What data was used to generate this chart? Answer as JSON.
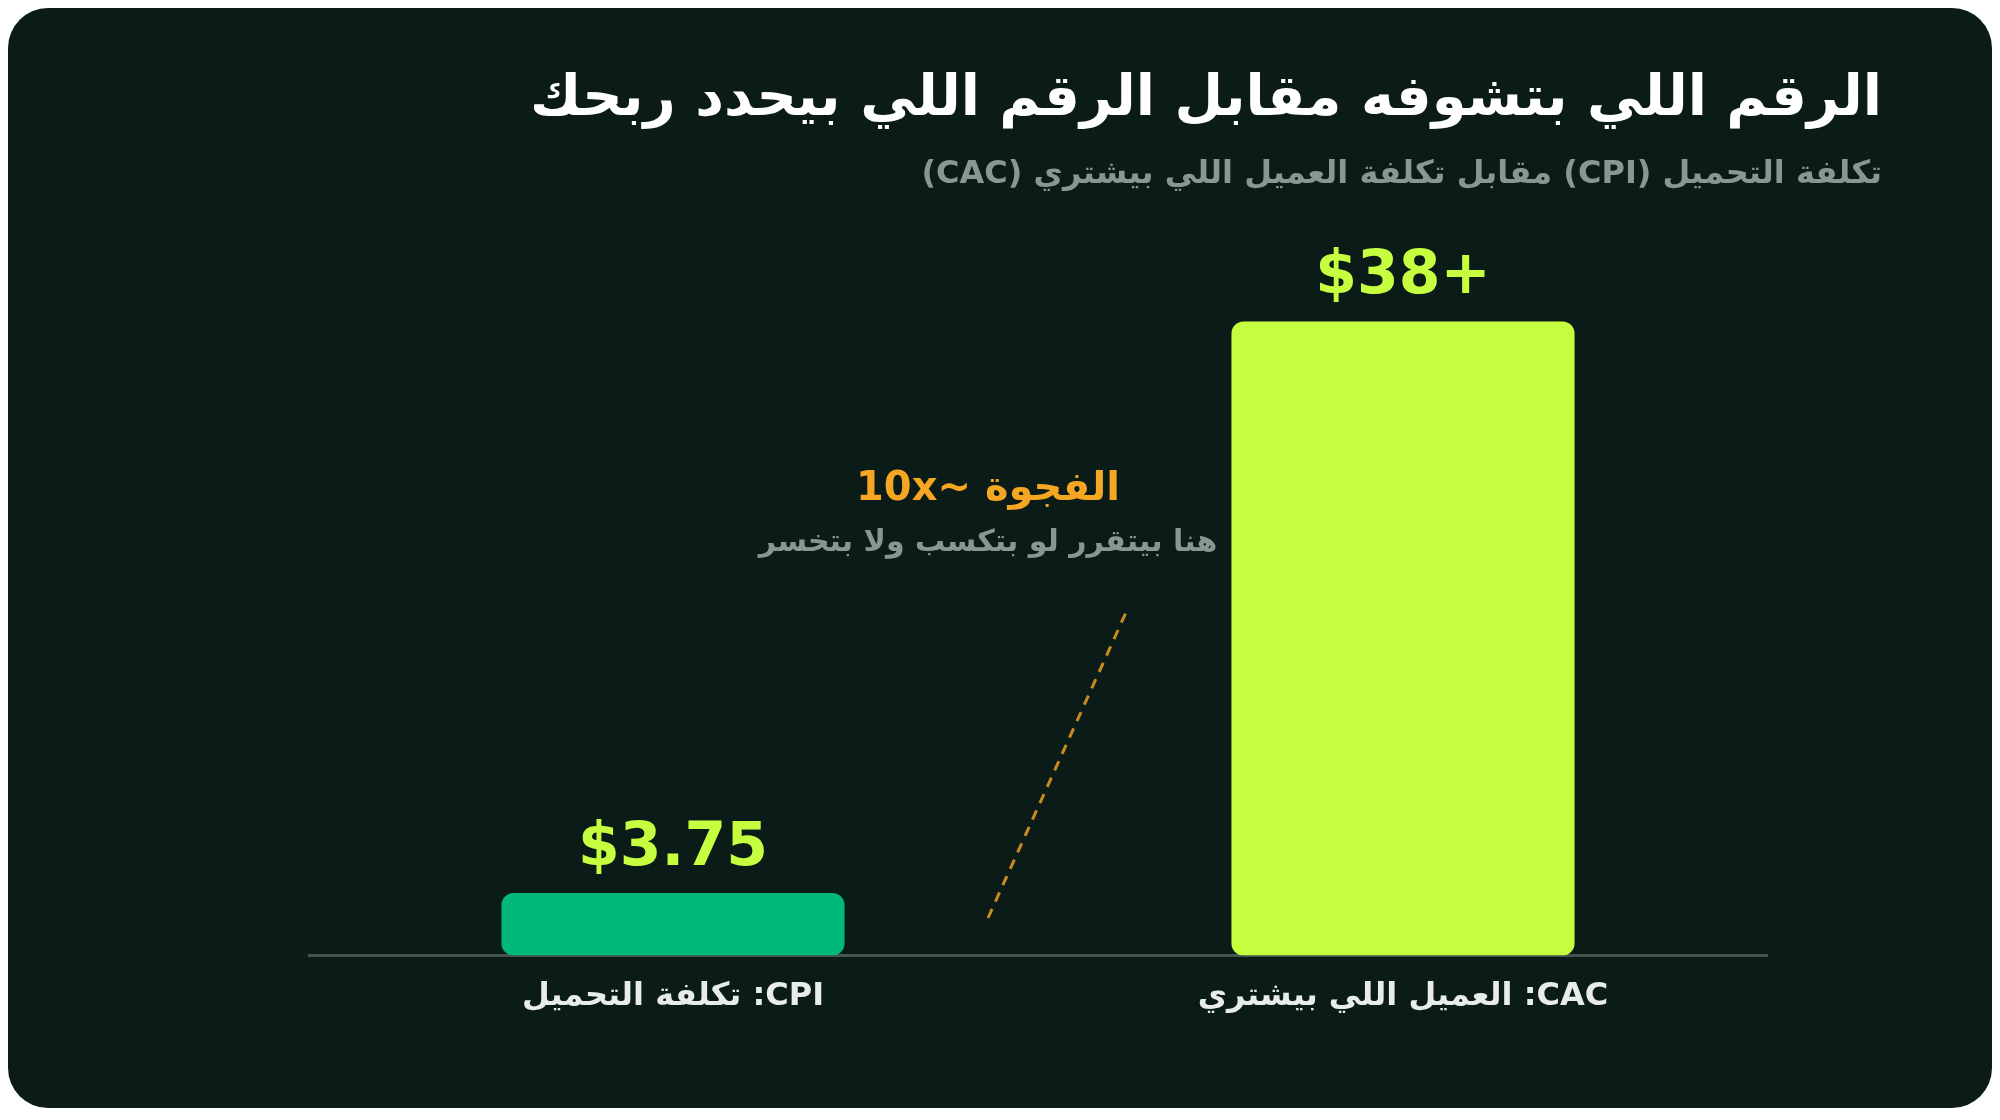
{
  "chart_data": {
    "type": "bar",
    "title": "الرقم اللي بتشوفه مقابل الرقم اللي بيحدد ربحك",
    "subtitle": "تكلفة التحميل (CPI) مقابل تكلفة العميل اللي بيشتري (CAC)",
    "categories": [
      "تكلفة التحميل :CPI",
      "العميل اللي بيشتري :CAC"
    ],
    "values": [
      3.75,
      38
    ],
    "colors": [
      "#00b87a",
      "#c6ff3f"
    ],
    "value_labels": [
      "$3.75",
      "$38+"
    ],
    "annotations": [
      "الفجوة ~10x",
      "هنا بيتقرر لو بتكسب ولا بتخسر"
    ],
    "legend": false
  }
}
